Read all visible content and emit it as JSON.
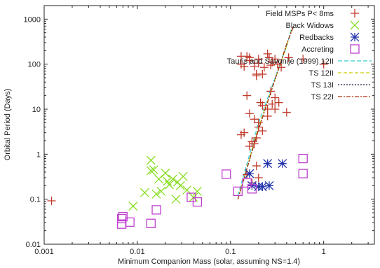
{
  "chart_data": {
    "type": "scatter",
    "title": "",
    "xlabel": "Minimum Companion Mass (solar, assuming NS=1.4)",
    "ylabel": "Orbital Period (Days)",
    "xscale": "log",
    "yscale": "log",
    "xlim": [
      0.001,
      3.5
    ],
    "ylim": [
      0.01,
      2000
    ],
    "x_ticks": [
      {
        "value": 0.001,
        "label": "0.001"
      },
      {
        "value": 0.01,
        "label": "0.01"
      },
      {
        "value": 0.1,
        "label": "0.1"
      },
      {
        "value": 1,
        "label": "1"
      }
    ],
    "y_ticks": [
      {
        "value": 0.01,
        "label": "0.01"
      },
      {
        "value": 0.1,
        "label": "0.1"
      },
      {
        "value": 1,
        "label": "1"
      },
      {
        "value": 10,
        "label": "10"
      },
      {
        "value": 100,
        "label": "100"
      },
      {
        "value": 1000,
        "label": "1000"
      }
    ],
    "grid": false,
    "legend_position": "top-right",
    "series": [
      {
        "name": "Field MSPs P< 8ms",
        "kind": "points",
        "marker": "plus",
        "color": "#c0392b",
        "points": [
          [
            0.0012,
            0.092
          ],
          [
            0.13,
            150
          ],
          [
            0.13,
            100
          ],
          [
            0.14,
            88
          ],
          [
            0.15,
            150
          ],
          [
            0.16,
            120
          ],
          [
            0.16,
            140
          ],
          [
            0.18,
            90
          ],
          [
            0.19,
            60
          ],
          [
            0.19,
            55
          ],
          [
            0.2,
            130
          ],
          [
            0.2,
            105
          ],
          [
            0.22,
            60
          ],
          [
            0.23,
            85
          ],
          [
            0.25,
            170
          ],
          [
            0.26,
            140
          ],
          [
            0.27,
            95
          ],
          [
            0.28,
            110
          ],
          [
            0.3,
            130
          ],
          [
            0.32,
            100
          ],
          [
            0.35,
            85
          ],
          [
            0.42,
            140
          ],
          [
            0.6,
            130
          ],
          [
            1.0,
            100
          ],
          [
            0.15,
            20
          ],
          [
            0.16,
            8
          ],
          [
            0.18,
            6
          ],
          [
            0.2,
            5
          ],
          [
            0.21,
            14
          ],
          [
            0.22,
            12
          ],
          [
            0.25,
            10
          ],
          [
            0.27,
            25
          ],
          [
            0.3,
            18
          ],
          [
            0.33,
            14
          ],
          [
            0.4,
            8.5
          ],
          [
            0.13,
            2.7
          ],
          [
            0.14,
            3.0
          ],
          [
            0.16,
            1.5
          ],
          [
            0.17,
            1.9
          ],
          [
            0.18,
            1.7
          ],
          [
            0.19,
            2.3
          ],
          [
            0.2,
            4.0
          ],
          [
            0.22,
            3.3
          ],
          [
            0.25,
            7
          ],
          [
            0.28,
            13
          ],
          [
            0.3,
            10
          ],
          [
            0.15,
            0.35
          ],
          [
            0.17,
            0.23
          ],
          [
            0.19,
            0.55
          ],
          [
            0.2,
            0.3
          ]
        ]
      },
      {
        "name": "Black Widows",
        "kind": "points",
        "marker": "cross",
        "color": "#88dd22",
        "points": [
          [
            0.009,
            0.07
          ],
          [
            0.012,
            0.14
          ],
          [
            0.014,
            0.73
          ],
          [
            0.014,
            0.43
          ],
          [
            0.015,
            0.45
          ],
          [
            0.016,
            0.13
          ],
          [
            0.017,
            0.28
          ],
          [
            0.018,
            0.15
          ],
          [
            0.02,
            0.38
          ],
          [
            0.021,
            0.25
          ],
          [
            0.022,
            0.21
          ],
          [
            0.024,
            0.28
          ],
          [
            0.026,
            0.1
          ],
          [
            0.027,
            0.24
          ],
          [
            0.029,
            0.2
          ],
          [
            0.031,
            0.32
          ],
          [
            0.034,
            0.16
          ],
          [
            0.04,
            0.11
          ],
          [
            0.044,
            0.15
          ]
        ]
      },
      {
        "name": "Redbacks",
        "kind": "points",
        "marker": "star",
        "color": "#2233aa",
        "points": [
          [
            0.16,
            0.37
          ],
          [
            0.17,
            0.2
          ],
          [
            0.2,
            0.19
          ],
          [
            0.22,
            0.19
          ],
          [
            0.25,
            0.62
          ],
          [
            0.26,
            0.2
          ],
          [
            0.36,
            0.62
          ]
        ]
      },
      {
        "name": "Accreting",
        "kind": "points",
        "marker": "square",
        "color": "#c040d0",
        "points": [
          [
            0.0068,
            0.028
          ],
          [
            0.0068,
            0.037
          ],
          [
            0.007,
            0.041
          ],
          [
            0.0083,
            0.031
          ],
          [
            0.014,
            0.029
          ],
          [
            0.016,
            0.058
          ],
          [
            0.038,
            0.11
          ],
          [
            0.044,
            0.087
          ],
          [
            0.09,
            0.36
          ],
          [
            0.12,
            0.15
          ],
          [
            0.15,
            0.23
          ],
          [
            0.17,
            0.17
          ],
          [
            0.6,
            0.8
          ],
          [
            0.6,
            0.37
          ]
        ]
      },
      {
        "name": "Tauris and Savonije (1999) 12II",
        "kind": "line",
        "dash": "6,3",
        "color": "#33cccc",
        "points": [
          [
            0.12,
            0.12
          ],
          [
            0.2,
            5
          ],
          [
            0.4,
            250
          ],
          [
            0.45,
            600
          ]
        ]
      },
      {
        "name": "TS 12II",
        "kind": "line",
        "dash": "5,3",
        "color": "#cccc00",
        "points": [
          [
            0.12,
            0.1
          ],
          [
            0.2,
            4
          ],
          [
            0.4,
            250
          ],
          [
            0.46,
            650
          ]
        ]
      },
      {
        "name": "TS 13I",
        "kind": "line",
        "dash": "2,2",
        "color": "#1a1a4a",
        "points": [
          [
            0.12,
            0.1
          ],
          [
            0.2,
            3.6
          ],
          [
            0.4,
            270
          ],
          [
            0.47,
            700
          ]
        ]
      },
      {
        "name": "TS 22I",
        "kind": "line",
        "dash": "6,2,2,2",
        "color": "#aa3311",
        "points": [
          [
            0.12,
            0.1
          ],
          [
            0.2,
            3.5
          ],
          [
            0.4,
            280
          ],
          [
            0.48,
            720
          ]
        ]
      }
    ]
  }
}
